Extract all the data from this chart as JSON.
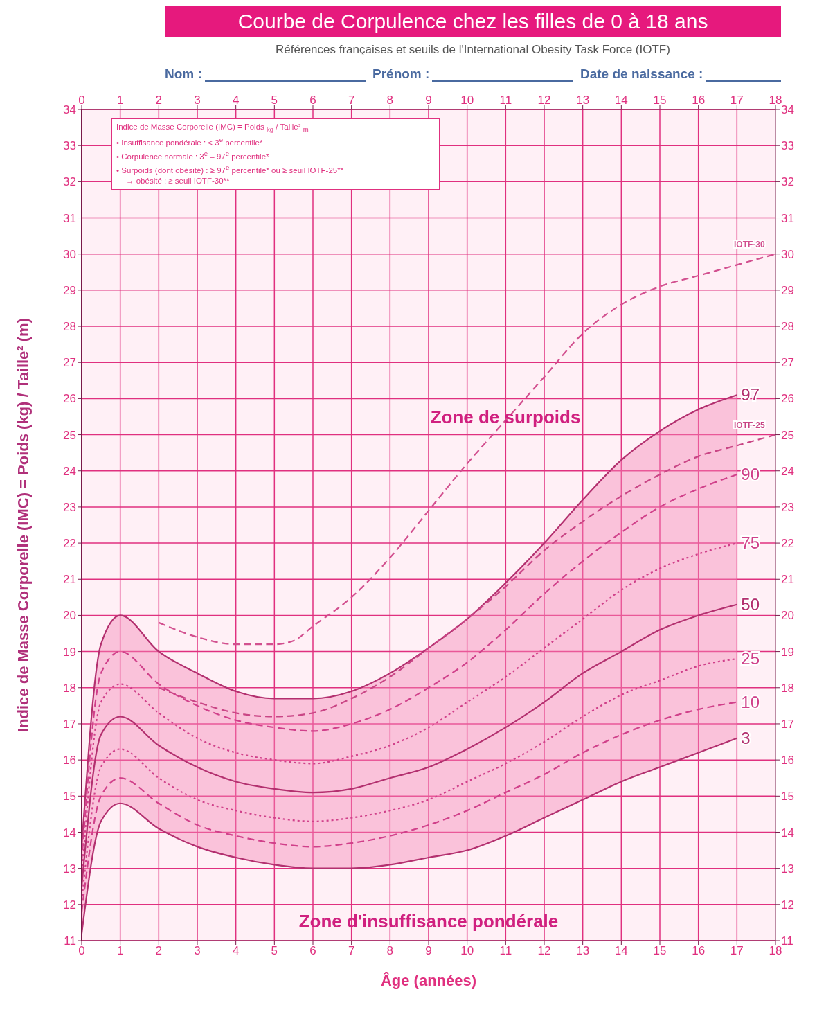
{
  "chart_data": {
    "type": "line",
    "title": "Courbe de Corpulence chez les filles de 0 à 18 ans",
    "subtitle": "Références françaises et seuils de l'International Obesity Task Force (IOTF)",
    "xlabel": "Âge (années)",
    "ylabel": "Indice de Masse Corporelle (IMC) = Poids (kg) / Taille² (m)",
    "x": [
      0,
      0.5,
      1,
      2,
      3,
      4,
      5,
      6,
      7,
      8,
      9,
      10,
      11,
      12,
      13,
      14,
      15,
      16,
      17
    ],
    "series": [
      {
        "name": "IOTF-30",
        "color": "#d2508f",
        "line_style": "dashed",
        "x": [
          2,
          3,
          4,
          5,
          5.5,
          6,
          7,
          8,
          9,
          10,
          11,
          12,
          13,
          14,
          15,
          16,
          17,
          18
        ],
        "values": [
          19.8,
          19.4,
          19.2,
          19.2,
          19.3,
          19.7,
          20.5,
          21.6,
          22.9,
          24.2,
          25.4,
          26.6,
          27.8,
          28.6,
          29.1,
          29.4,
          29.7,
          30.0
        ]
      },
      {
        "name": "97",
        "color": "#b3306f",
        "line_style": "solid",
        "lower": [
          11.2,
          14.3,
          14.8,
          14.1,
          13.6,
          13.3,
          13.1,
          13.0,
          13.0,
          13.1,
          13.3,
          13.5,
          13.9,
          14.4,
          14.9,
          15.4,
          15.8,
          16.2,
          16.6
        ],
        "upper": [
          13.6,
          19.2,
          20.0,
          19.0,
          18.4,
          17.9,
          17.7,
          17.7,
          17.9,
          18.4,
          19.1,
          19.9,
          20.9,
          22.0,
          23.2,
          24.3,
          25.1,
          25.7,
          26.1
        ],
        "values": [
          13.6,
          19.2,
          20.0,
          19.0,
          18.4,
          17.9,
          17.7,
          17.7,
          17.9,
          18.4,
          19.1,
          19.9,
          20.9,
          22.0,
          23.2,
          24.3,
          25.1,
          25.7,
          26.1
        ]
      },
      {
        "name": "IOTF-25",
        "color": "#c94585",
        "line_style": "dashed",
        "x": [
          2,
          3,
          4,
          5,
          6,
          7,
          8,
          9,
          10,
          11,
          12,
          13,
          14,
          15,
          16,
          17,
          18
        ],
        "values": [
          18.0,
          17.6,
          17.3,
          17.2,
          17.3,
          17.7,
          18.3,
          19.1,
          19.9,
          20.8,
          21.8,
          22.6,
          23.3,
          23.9,
          24.4,
          24.7,
          25.0
        ]
      },
      {
        "name": "90",
        "color": "#d0408a",
        "line_style": "dashed",
        "values": [
          13.2,
          18.4,
          19.0,
          18.1,
          17.5,
          17.1,
          16.9,
          16.8,
          17.0,
          17.4,
          18.0,
          18.7,
          19.6,
          20.6,
          21.5,
          22.3,
          23.0,
          23.5,
          23.9
        ]
      },
      {
        "name": "75",
        "color": "#d0408a",
        "line_style": "dotted",
        "values": [
          12.8,
          17.6,
          18.1,
          17.3,
          16.6,
          16.2,
          16.0,
          15.9,
          16.1,
          16.4,
          16.9,
          17.6,
          18.3,
          19.1,
          19.9,
          20.7,
          21.3,
          21.7,
          22.0
        ]
      },
      {
        "name": "50",
        "color": "#b3306f",
        "line_style": "solid",
        "values": [
          12.5,
          16.7,
          17.2,
          16.4,
          15.8,
          15.4,
          15.2,
          15.1,
          15.2,
          15.5,
          15.8,
          16.3,
          16.9,
          17.6,
          18.4,
          19.0,
          19.6,
          20.0,
          20.3
        ]
      },
      {
        "name": "25",
        "color": "#d0408a",
        "line_style": "dotted",
        "values": [
          12.1,
          15.8,
          16.3,
          15.5,
          14.9,
          14.6,
          14.4,
          14.3,
          14.4,
          14.6,
          14.9,
          15.4,
          15.9,
          16.5,
          17.2,
          17.8,
          18.2,
          18.6,
          18.8
        ]
      },
      {
        "name": "10",
        "color": "#d0408a",
        "line_style": "dashed",
        "values": [
          11.8,
          15.0,
          15.5,
          14.8,
          14.2,
          13.9,
          13.7,
          13.6,
          13.7,
          13.9,
          14.2,
          14.6,
          15.1,
          15.6,
          16.2,
          16.7,
          17.1,
          17.4,
          17.6
        ]
      },
      {
        "name": "3",
        "color": "#b3306f",
        "line_style": "solid",
        "values": [
          11.2,
          14.3,
          14.8,
          14.1,
          13.6,
          13.3,
          13.1,
          13.0,
          13.0,
          13.1,
          13.3,
          13.5,
          13.9,
          14.4,
          14.9,
          15.4,
          15.8,
          16.2,
          16.6
        ]
      }
    ],
    "xlim": [
      0,
      18
    ],
    "xticks": [
      0,
      1,
      2,
      3,
      4,
      5,
      6,
      7,
      8,
      9,
      10,
      11,
      12,
      13,
      14,
      15,
      16,
      17,
      18
    ],
    "x2lim": [
      0,
      18
    ],
    "x2ticks": [
      0,
      1,
      2,
      3,
      4,
      5,
      6,
      7,
      8,
      9,
      10,
      11,
      12,
      13,
      14,
      15,
      16,
      17,
      18
    ],
    "ylim": [
      11,
      34
    ],
    "yticks": [
      11,
      12,
      13,
      14,
      15,
      16,
      17,
      18,
      19,
      20,
      21,
      22,
      23,
      24,
      25,
      26,
      27,
      28,
      29,
      30,
      31,
      32,
      33,
      34
    ],
    "y2lim": [
      11,
      34
    ],
    "y2ticks": [
      11,
      12,
      13,
      14,
      15,
      16,
      17,
      18,
      19,
      20,
      21,
      22,
      23,
      24,
      25,
      26,
      27,
      28,
      29,
      30,
      31,
      32,
      33,
      34
    ],
    "grid": true,
    "legend": false,
    "marker": "none",
    "annotations": [
      "Zone de surpoids",
      "Zone d'insuffisance pondérale",
      "Indice de Masse Corporelle (IMC) = Poids $_{kg}$ / Taille² $_{m}$",
      "• Insuffisance pondérale : < 3$^{e}$ percentile*",
      "• Corpulence normale : 3$^{e}$ – 97$^{e}$ percentile*",
      "• Surpoids (dont obésité) : ≥ 97$^{e}$ percentile* ou ≥ seuil IOTF-25**",
      "→ obésité : ≥ seuil IOTF-30**",
      "Nom :",
      "Prénom :",
      "Date de naissance :"
    ]
  }
}
